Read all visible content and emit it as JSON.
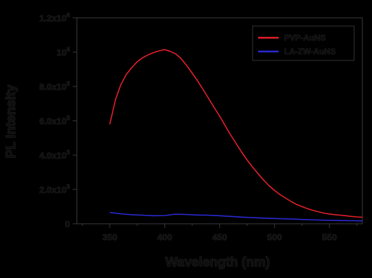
{
  "chart_data": {
    "type": "line",
    "title": "",
    "xlabel": "Wavelength (nm)",
    "ylabel": "PL Intensity",
    "xlim": [
      320,
      580
    ],
    "ylim": [
      0,
      1200000
    ],
    "x_ticks": [
      {
        "value": 350,
        "label": "350"
      },
      {
        "value": 400,
        "label": "400"
      },
      {
        "value": 450,
        "label": "450"
      },
      {
        "value": 500,
        "label": "500"
      },
      {
        "value": 550,
        "label": "550"
      }
    ],
    "y_ticks": [
      {
        "value": 0,
        "label": "0",
        "exp": ""
      },
      {
        "value": 200000,
        "label": "2.0x10",
        "exp": "5"
      },
      {
        "value": 400000,
        "label": "4.0x10",
        "exp": "5"
      },
      {
        "value": 600000,
        "label": "6.0x10",
        "exp": "5"
      },
      {
        "value": 800000,
        "label": "8.0x10",
        "exp": "5"
      },
      {
        "value": 1000000,
        "label": "10",
        "exp": "6"
      },
      {
        "value": 1200000,
        "label": "1.2x10",
        "exp": "6"
      }
    ],
    "legend_position": "top-right",
    "grid": false,
    "series": [
      {
        "name": "PVP-AuNS",
        "color": "#e8202a",
        "x": [
          350,
          355,
          360,
          365,
          370,
          375,
          380,
          385,
          390,
          395,
          400,
          405,
          410,
          415,
          420,
          425,
          430,
          435,
          440,
          445,
          450,
          455,
          460,
          465,
          470,
          475,
          480,
          485,
          490,
          495,
          500,
          505,
          510,
          515,
          520,
          525,
          530,
          535,
          540,
          545,
          550,
          555,
          560,
          565,
          570,
          575,
          580
        ],
        "y": [
          580000,
          720000,
          810000,
          870000,
          910000,
          945000,
          968000,
          985000,
          998000,
          1008000,
          1015000,
          1005000,
          990000,
          962000,
          922000,
          878000,
          832000,
          782000,
          730000,
          678000,
          628000,
          572000,
          518000,
          468000,
          418000,
          372000,
          330000,
          292000,
          255000,
          222000,
          194000,
          170000,
          150000,
          130000,
          113000,
          100000,
          88000,
          78000,
          70000,
          62000,
          57000,
          53000,
          50000,
          47000,
          43000,
          40000,
          38000
        ]
      },
      {
        "name": "LA-ZW-AuNS",
        "color": "#2a2ad8",
        "x": [
          350,
          360,
          370,
          380,
          390,
          400,
          410,
          420,
          430,
          440,
          450,
          460,
          470,
          480,
          490,
          500,
          510,
          520,
          530,
          540,
          550,
          560,
          570,
          580
        ],
        "y": [
          66000,
          58000,
          53000,
          50000,
          47000,
          48000,
          56000,
          54000,
          51000,
          50000,
          47000,
          43000,
          39000,
          36000,
          33000,
          31000,
          29000,
          27000,
          24000,
          22000,
          20000,
          19000,
          18000,
          17000
        ]
      }
    ]
  }
}
